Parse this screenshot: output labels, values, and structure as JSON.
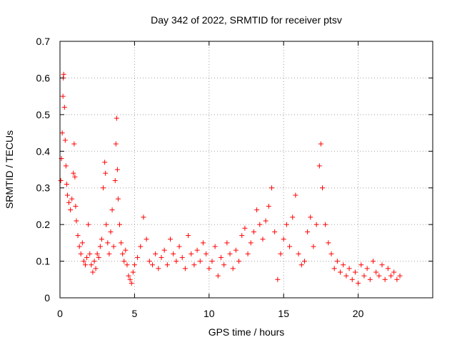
{
  "chart_data": {
    "type": "scatter",
    "title": "Day 342 of 2022, SRMTID for receiver ptsv",
    "xlabel": "GPS time / hours",
    "ylabel": "SRMTID / TECUs",
    "xlim": [
      0,
      25
    ],
    "ylim": [
      0,
      0.7
    ],
    "xticks": [
      0,
      5,
      10,
      15,
      20
    ],
    "yticks": [
      0,
      0.1,
      0.2,
      0.3,
      0.4,
      0.5,
      0.6,
      0.7
    ],
    "xtick_labels": [
      "0",
      "5",
      "10",
      "15",
      "20"
    ],
    "ytick_labels": [
      "0",
      "0.1",
      "0.2",
      "0.3",
      "0.4",
      "0.5",
      "0.6",
      "0.7"
    ],
    "grid": true,
    "legend": "none",
    "marker": "+",
    "colors": {
      "series": "#ff0000",
      "grid": "#a0a0a0",
      "axis": "#000000"
    },
    "series": [
      {
        "name": "SRMTID",
        "points": [
          [
            0.05,
            0.32
          ],
          [
            0.1,
            0.38
          ],
          [
            0.15,
            0.45
          ],
          [
            0.2,
            0.55
          ],
          [
            0.22,
            0.6
          ],
          [
            0.25,
            0.61
          ],
          [
            0.3,
            0.52
          ],
          [
            0.35,
            0.43
          ],
          [
            0.4,
            0.36
          ],
          [
            0.45,
            0.31
          ],
          [
            0.5,
            0.28
          ],
          [
            0.6,
            0.26
          ],
          [
            0.7,
            0.24
          ],
          [
            0.8,
            0.27
          ],
          [
            0.9,
            0.34
          ],
          [
            0.95,
            0.42
          ],
          [
            1.0,
            0.33
          ],
          [
            1.05,
            0.25
          ],
          [
            1.1,
            0.21
          ],
          [
            1.2,
            0.17
          ],
          [
            1.3,
            0.14
          ],
          [
            1.4,
            0.12
          ],
          [
            1.5,
            0.15
          ],
          [
            1.6,
            0.1
          ],
          [
            1.7,
            0.09
          ],
          [
            1.8,
            0.11
          ],
          [
            1.9,
            0.2
          ],
          [
            2.0,
            0.12
          ],
          [
            2.1,
            0.09
          ],
          [
            2.2,
            0.07
          ],
          [
            2.3,
            0.1
          ],
          [
            2.4,
            0.08
          ],
          [
            2.5,
            0.12
          ],
          [
            2.6,
            0.11
          ],
          [
            2.7,
            0.14
          ],
          [
            2.8,
            0.16
          ],
          [
            2.9,
            0.3
          ],
          [
            3.0,
            0.37
          ],
          [
            3.05,
            0.34
          ],
          [
            3.1,
            0.2
          ],
          [
            3.2,
            0.15
          ],
          [
            3.3,
            0.12
          ],
          [
            3.4,
            0.18
          ],
          [
            3.5,
            0.24
          ],
          [
            3.6,
            0.14
          ],
          [
            3.7,
            0.32
          ],
          [
            3.75,
            0.42
          ],
          [
            3.8,
            0.49
          ],
          [
            3.85,
            0.35
          ],
          [
            3.9,
            0.27
          ],
          [
            4.0,
            0.2
          ],
          [
            4.1,
            0.15
          ],
          [
            4.2,
            0.12
          ],
          [
            4.3,
            0.1
          ],
          [
            4.4,
            0.13
          ],
          [
            4.5,
            0.09
          ],
          [
            4.6,
            0.06
          ],
          [
            4.7,
            0.05
          ],
          [
            4.8,
            0.04
          ],
          [
            4.9,
            0.07
          ],
          [
            5.0,
            0.09
          ],
          [
            5.2,
            0.11
          ],
          [
            5.4,
            0.14
          ],
          [
            5.6,
            0.22
          ],
          [
            5.8,
            0.16
          ],
          [
            6.0,
            0.1
          ],
          [
            6.2,
            0.09
          ],
          [
            6.4,
            0.12
          ],
          [
            6.6,
            0.08
          ],
          [
            6.8,
            0.11
          ],
          [
            7.0,
            0.13
          ],
          [
            7.2,
            0.09
          ],
          [
            7.4,
            0.16
          ],
          [
            7.6,
            0.12
          ],
          [
            7.8,
            0.1
          ],
          [
            8.0,
            0.14
          ],
          [
            8.2,
            0.11
          ],
          [
            8.4,
            0.08
          ],
          [
            8.6,
            0.17
          ],
          [
            8.8,
            0.12
          ],
          [
            9.0,
            0.09
          ],
          [
            9.2,
            0.13
          ],
          [
            9.4,
            0.1
          ],
          [
            9.6,
            0.15
          ],
          [
            9.8,
            0.12
          ],
          [
            10.0,
            0.08
          ],
          [
            10.2,
            0.1
          ],
          [
            10.4,
            0.14
          ],
          [
            10.6,
            0.06
          ],
          [
            10.8,
            0.11
          ],
          [
            11.0,
            0.09
          ],
          [
            11.2,
            0.15
          ],
          [
            11.4,
            0.12
          ],
          [
            11.6,
            0.08
          ],
          [
            11.8,
            0.13
          ],
          [
            12.0,
            0.1
          ],
          [
            12.2,
            0.17
          ],
          [
            12.4,
            0.19
          ],
          [
            12.6,
            0.12
          ],
          [
            12.8,
            0.15
          ],
          [
            13.0,
            0.18
          ],
          [
            13.2,
            0.24
          ],
          [
            13.4,
            0.2
          ],
          [
            13.6,
            0.16
          ],
          [
            13.8,
            0.21
          ],
          [
            14.0,
            0.25
          ],
          [
            14.2,
            0.3
          ],
          [
            14.4,
            0.18
          ],
          [
            14.6,
            0.05
          ],
          [
            14.8,
            0.12
          ],
          [
            15.0,
            0.16
          ],
          [
            15.2,
            0.2
          ],
          [
            15.4,
            0.14
          ],
          [
            15.6,
            0.22
          ],
          [
            15.8,
            0.28
          ],
          [
            16.0,
            0.12
          ],
          [
            16.2,
            0.09
          ],
          [
            16.4,
            0.1
          ],
          [
            16.6,
            0.18
          ],
          [
            16.8,
            0.22
          ],
          [
            17.0,
            0.14
          ],
          [
            17.2,
            0.2
          ],
          [
            17.4,
            0.36
          ],
          [
            17.5,
            0.42
          ],
          [
            17.6,
            0.3
          ],
          [
            17.8,
            0.2
          ],
          [
            18.0,
            0.15
          ],
          [
            18.2,
            0.12
          ],
          [
            18.4,
            0.08
          ],
          [
            18.6,
            0.1
          ],
          [
            18.8,
            0.07
          ],
          [
            19.0,
            0.09
          ],
          [
            19.2,
            0.06
          ],
          [
            19.4,
            0.08
          ],
          [
            19.6,
            0.05
          ],
          [
            19.8,
            0.07
          ],
          [
            20.0,
            0.04
          ],
          [
            20.2,
            0.09
          ],
          [
            20.4,
            0.06
          ],
          [
            20.6,
            0.08
          ],
          [
            20.8,
            0.05
          ],
          [
            21.0,
            0.1
          ],
          [
            21.2,
            0.07
          ],
          [
            21.4,
            0.06
          ],
          [
            21.6,
            0.09
          ],
          [
            21.8,
            0.05
          ],
          [
            22.0,
            0.08
          ],
          [
            22.2,
            0.06
          ],
          [
            22.4,
            0.07
          ],
          [
            22.6,
            0.05
          ],
          [
            22.8,
            0.06
          ]
        ]
      }
    ]
  }
}
